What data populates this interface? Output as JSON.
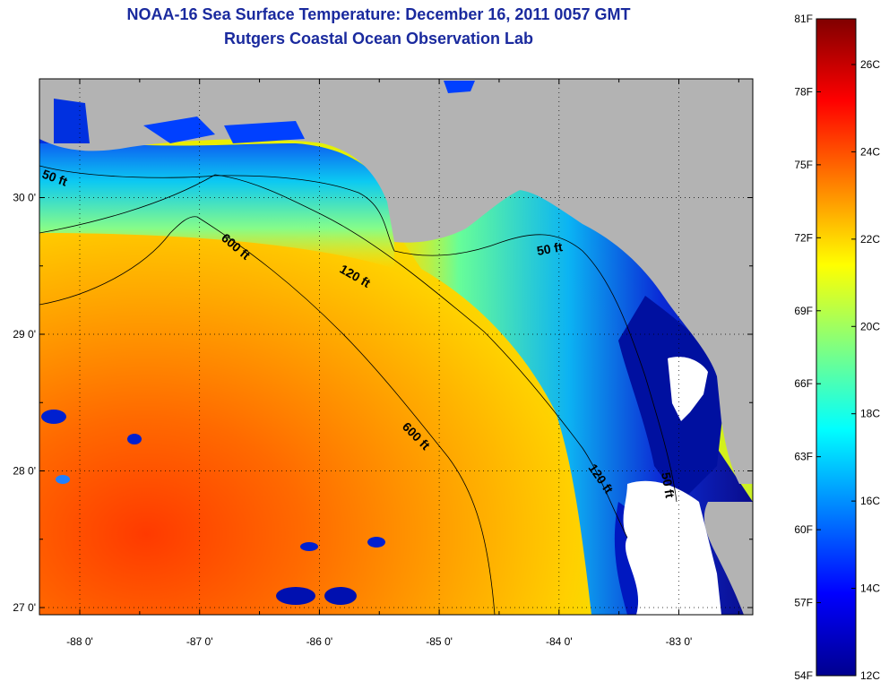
{
  "title": {
    "line1": "NOAA-16 Sea Surface Temperature:  December 16, 2011 0057 GMT",
    "line2": "Rutgers Coastal Ocean Observation Lab"
  },
  "map": {
    "lat_ticks": [
      {
        "value": 30,
        "label": "30 0'"
      },
      {
        "value": 29,
        "label": "29 0'"
      },
      {
        "value": 28,
        "label": "28 0'"
      },
      {
        "value": 27,
        "label": "27 0'"
      }
    ],
    "lon_ticks": [
      {
        "value": -88,
        "label": "-88 0'"
      },
      {
        "value": -87,
        "label": "-87 0'"
      },
      {
        "value": -86,
        "label": "-86 0'"
      },
      {
        "value": -85,
        "label": "-85 0'"
      },
      {
        "value": -84,
        "label": "-84 0'"
      },
      {
        "value": -83,
        "label": "-83 0'"
      }
    ],
    "contour_labels": [
      {
        "text": "50 ft",
        "id": "c50a"
      },
      {
        "text": "600 ft",
        "id": "c600a"
      },
      {
        "text": "120 ft",
        "id": "c120a"
      },
      {
        "text": "50 ft",
        "id": "c50b"
      },
      {
        "text": "600 ft",
        "id": "c600b"
      },
      {
        "text": "120 ft",
        "id": "c120b"
      },
      {
        "text": "50 ft",
        "id": "c50c"
      }
    ],
    "colors": {
      "land": "#b3b3b3",
      "cloud": "#ffffff"
    }
  },
  "colorbar": {
    "fahrenheit": [
      "81F",
      "78F",
      "75F",
      "72F",
      "69F",
      "66F",
      "63F",
      "60F",
      "57F",
      "54F"
    ],
    "celsius": [
      "26C",
      "24C",
      "22C",
      "20C",
      "18C",
      "16C",
      "14C",
      "12C"
    ]
  }
}
